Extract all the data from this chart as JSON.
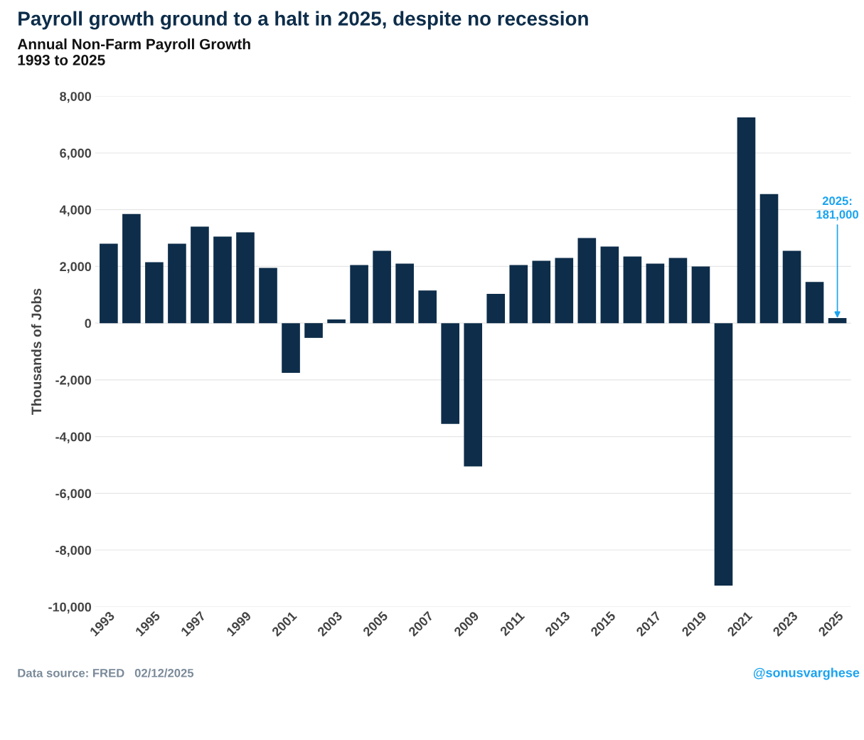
{
  "chart_data": {
    "type": "bar",
    "title": "Payroll growth ground to a halt in 2025, despite no recession",
    "subtitle": "Annual Non-Farm Payroll Growth\n1993 to 2025",
    "ylabel": "Thousands of Jobs",
    "categories": [
      "1993",
      null,
      "1995",
      null,
      "1997",
      null,
      "1999",
      null,
      "2001",
      null,
      "2003",
      null,
      "2005",
      null,
      "2007",
      null,
      "2009",
      null,
      "2011",
      null,
      "2013",
      null,
      "2015",
      null,
      "2017",
      null,
      "2019",
      null,
      "2021",
      null,
      "2023",
      null,
      "2025"
    ],
    "values": [
      2800,
      3850,
      2150,
      2800,
      3400,
      3050,
      3200,
      1950,
      -1750,
      -520,
      130,
      2050,
      2550,
      2100,
      1150,
      -3550,
      -5050,
      1030,
      2050,
      2200,
      2300,
      3000,
      2700,
      2350,
      2100,
      2300,
      2000,
      -9250,
      7250,
      4550,
      2550,
      1450,
      181
    ],
    "color": "#0d2d4a",
    "ylim": [
      -10000,
      8000
    ],
    "yticks": [
      {
        "value": -10000,
        "label": "-10,000"
      },
      {
        "value": -8000,
        "label": "-8,000"
      },
      {
        "value": -6000,
        "label": "-6,000"
      },
      {
        "value": -4000,
        "label": "-4,000"
      },
      {
        "value": -2000,
        "label": "-2,000"
      },
      0,
      {
        "value": 2000,
        "label": "2,000"
      },
      {
        "value": 4000,
        "label": "4,000"
      },
      {
        "value": 6000,
        "label": "6,000"
      },
      {
        "value": 8000,
        "label": "8,000"
      }
    ],
    "grid": "y",
    "annotations": [
      {
        "text": "2025:\n181,000",
        "x": "2025",
        "y": 181
      },
      "Data source: FRED   02/12/2025",
      "@sonusvarghese"
    ]
  }
}
